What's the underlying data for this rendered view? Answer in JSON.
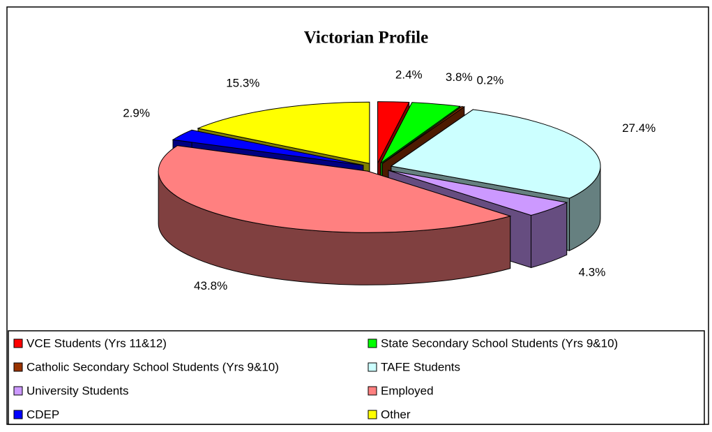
{
  "chart_data": {
    "type": "pie3d",
    "title": "Victorian Profile",
    "categories": [
      "VCE Students (Yrs 11&12)",
      "State Secondary School Students (Yrs 9&10)",
      "Catholic Secondary School Students (Yrs 9&10)",
      "TAFE Students",
      "University Students",
      "Employed",
      "CDEP",
      "Other"
    ],
    "values": [
      2.4,
      3.8,
      0.2,
      27.4,
      4.3,
      43.8,
      2.9,
      15.3
    ],
    "value_labels": [
      "2.4%",
      "3.8%",
      "0.2%",
      "27.4%",
      "4.3%",
      "43.8%",
      "2.9%",
      "15.3%"
    ],
    "colors": [
      "#ff0000",
      "#00ff00",
      "#993300",
      "#ccffff",
      "#cc99ff",
      "#ff8080",
      "#0000ff",
      "#ffff00"
    ],
    "legend": "bottom"
  }
}
